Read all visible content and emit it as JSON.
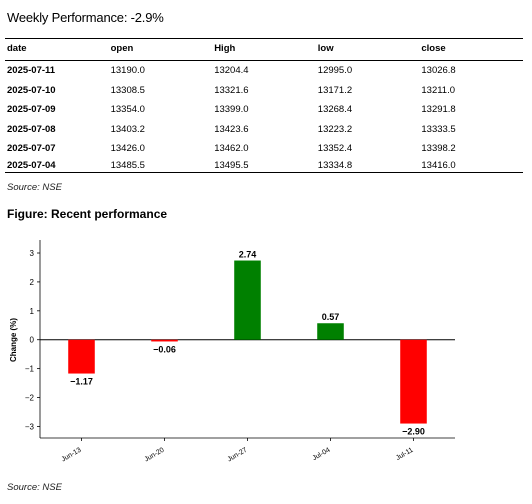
{
  "header": {
    "title": "Weekly Performance: -2.9%"
  },
  "table": {
    "columns": [
      "date",
      "open",
      "High",
      "low",
      "close"
    ],
    "rows": [
      [
        "2025-07-11",
        "13190.0",
        "13204.4",
        "12995.0",
        "13026.8"
      ],
      [
        "2025-07-10",
        "13308.5",
        "13321.6",
        "13171.2",
        "13211.0"
      ],
      [
        "2025-07-09",
        "13354.0",
        "13399.0",
        "13268.4",
        "13291.8"
      ],
      [
        "2025-07-08",
        "13403.2",
        "13423.6",
        "13223.2",
        "13333.5"
      ],
      [
        "2025-07-07",
        "13426.0",
        "13462.0",
        "13352.4",
        "13398.2"
      ],
      [
        "2025-07-04",
        "13485.5",
        "13495.5",
        "13334.8",
        "13416.0"
      ]
    ],
    "source": "Source: NSE"
  },
  "figure": {
    "title": "Figure: Recent performance",
    "source": "Source: NSE"
  },
  "chart_data": {
    "type": "bar",
    "categories": [
      "Jun-13",
      "Jun-20",
      "Jun-27",
      "Jul-04",
      "Jul-11"
    ],
    "values": [
      -1.17,
      -0.06,
      2.74,
      0.57,
      -2.9
    ],
    "value_labels": [
      "−1.17",
      "−0.06",
      "2.74",
      "0.57",
      "−2.90"
    ],
    "ylabel": "Change (%)",
    "xlabel": "",
    "ylim": [
      -3.4,
      3.45
    ],
    "yticks": [
      3,
      2,
      1,
      0,
      -1,
      -2,
      -3
    ],
    "ytick_labels": [
      "3",
      "2",
      "1",
      "0",
      "−1",
      "−2",
      "−3"
    ],
    "colors": {
      "positive": "#008000",
      "negative": "#ff0000",
      "zero_line": "#000000"
    },
    "grid": false,
    "legend": "none"
  }
}
